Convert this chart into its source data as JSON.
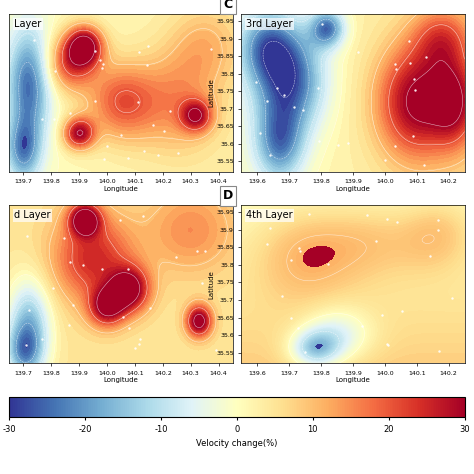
{
  "colorbar": {
    "vmin": -30,
    "vmax": 30,
    "ticks": [
      -30,
      -20,
      -10,
      0,
      10,
      20,
      30
    ],
    "label": "Velocity change(%)"
  },
  "colormap": "RdYlBu_r",
  "panels": {
    "A": {
      "title": "Layer",
      "lon_range": [
        139.65,
        140.45
      ],
      "lat_range": [
        35.52,
        35.97
      ],
      "has_lat": false,
      "lon_ticks": [
        139.7,
        139.8,
        139.9,
        140.0,
        140.1,
        140.2,
        140.3,
        140.4
      ]
    },
    "C": {
      "title": "3rd Layer",
      "lon_range": [
        139.55,
        140.25
      ],
      "lat_range": [
        35.52,
        35.97
      ],
      "has_lat": true,
      "lon_ticks": [
        139.6,
        139.7,
        139.8,
        139.9,
        140.0,
        140.1,
        140.2
      ]
    },
    "B": {
      "title": "d Layer",
      "lon_range": [
        139.65,
        140.45
      ],
      "lat_range": [
        35.52,
        35.97
      ],
      "has_lat": false,
      "lon_ticks": [
        139.7,
        139.8,
        139.9,
        140.0,
        140.1,
        140.2,
        140.3,
        140.4
      ]
    },
    "D": {
      "title": "4th Layer",
      "lon_range": [
        139.55,
        140.25
      ],
      "lat_range": [
        35.52,
        35.97
      ],
      "has_lat": true,
      "lon_ticks": [
        139.6,
        139.7,
        139.8,
        139.9,
        140.0,
        140.1,
        140.2
      ]
    }
  },
  "lat_ticks": [
    35.55,
    35.6,
    35.65,
    35.7,
    35.75,
    35.8,
    35.85,
    35.9,
    35.95
  ]
}
